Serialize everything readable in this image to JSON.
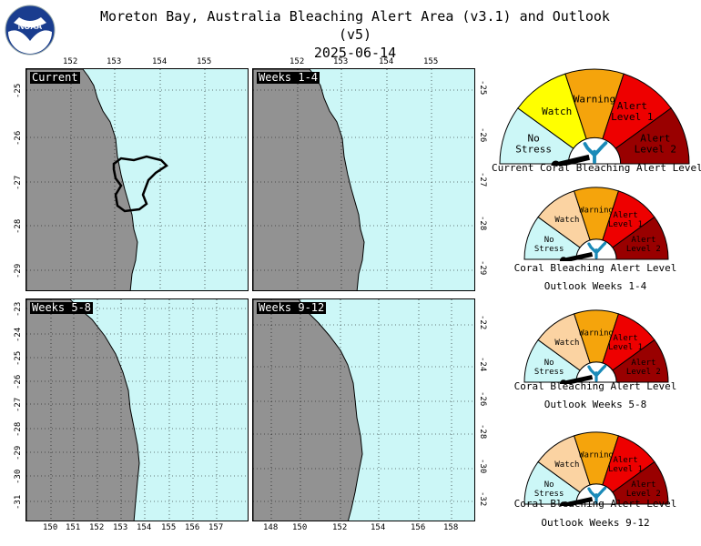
{
  "header": {
    "title": "Moreton Bay, Australia Bleaching Alert Area (v3.1) and Outlook (v5)",
    "date": "2025-06-14",
    "logo_text": "NOAA"
  },
  "colors": {
    "ocean": "#ccf7f7",
    "land": "#929292",
    "no_stress": "#ccf7f7",
    "watch": "#ffff00",
    "watch_outlook": "#fbd3a2",
    "warning": "#f5a40c",
    "alert1": "#ee0000",
    "alert2": "#990000"
  },
  "chart_data": [
    {
      "type": "map",
      "panel_label": "Current",
      "x_ticks": [
        "152",
        "153",
        "154",
        "155"
      ],
      "y_ticks": [
        "-25",
        "-26",
        "-27",
        "-28",
        "-29"
      ],
      "x_side": "top",
      "y_side": "left"
    },
    {
      "type": "map",
      "panel_label": "Weeks 1-4",
      "x_ticks": [
        "152",
        "153",
        "154",
        "155"
      ],
      "y_ticks": [
        "-25",
        "-26",
        "-27",
        "-28",
        "-29"
      ],
      "x_side": "top",
      "y_side": "right"
    },
    {
      "type": "map",
      "panel_label": "Weeks 5-8",
      "x_ticks": [
        "150",
        "151",
        "152",
        "153",
        "154",
        "155",
        "156",
        "157"
      ],
      "y_ticks": [
        "-23",
        "-24",
        "-25",
        "-26",
        "-27",
        "-28",
        "-29",
        "-30",
        "-31"
      ],
      "x_side": "bottom",
      "y_side": "left"
    },
    {
      "type": "map",
      "panel_label": "Weeks 9-12",
      "x_ticks": [
        "148",
        "150",
        "152",
        "154",
        "156",
        "158"
      ],
      "y_ticks": [
        "-22",
        "-24",
        "-26",
        "-28",
        "-30",
        "-32"
      ],
      "x_side": "bottom",
      "y_side": "right"
    }
  ],
  "gauges": [
    {
      "caption": "Current Coral Bleaching Alert Level",
      "caption2": "",
      "level": "No Stress",
      "labels": {
        "no_stress": [
          "No",
          "Stress"
        ],
        "watch": [
          "Watch"
        ],
        "warning": [
          "Warning"
        ],
        "alert1": [
          "Alert",
          "Level 1"
        ],
        "alert2": [
          "Alert",
          "Level 2"
        ]
      }
    },
    {
      "caption": "Coral Bleaching Alert Level",
      "caption2": "Outlook Weeks 1-4",
      "level": "No Stress",
      "labels": {
        "no_stress": [
          "No",
          "Stress"
        ],
        "watch": [
          "Watch"
        ],
        "warning": [
          "Warning"
        ],
        "alert1": [
          "Alert",
          "Level 1"
        ],
        "alert2": [
          "Alert",
          "Level 2"
        ]
      }
    },
    {
      "caption": "Coral Bleaching Alert Level",
      "caption2": "Outlook Weeks 5-8",
      "level": "No Stress",
      "labels": {
        "no_stress": [
          "No",
          "Stress"
        ],
        "watch": [
          "Watch"
        ],
        "warning": [
          "Warning"
        ],
        "alert1": [
          "Alert",
          "Level 1"
        ],
        "alert2": [
          "Alert",
          "Level 2"
        ]
      }
    },
    {
      "caption": "Coral Bleaching Alert Level",
      "caption2": "Outlook Weeks 9-12",
      "level": "No Stress",
      "labels": {
        "no_stress": [
          "No",
          "Stress"
        ],
        "watch": [
          "Watch"
        ],
        "warning": [
          "Warning"
        ],
        "alert1": [
          "Alert",
          "Level 1"
        ],
        "alert2": [
          "Alert",
          "Level 2"
        ]
      }
    }
  ]
}
